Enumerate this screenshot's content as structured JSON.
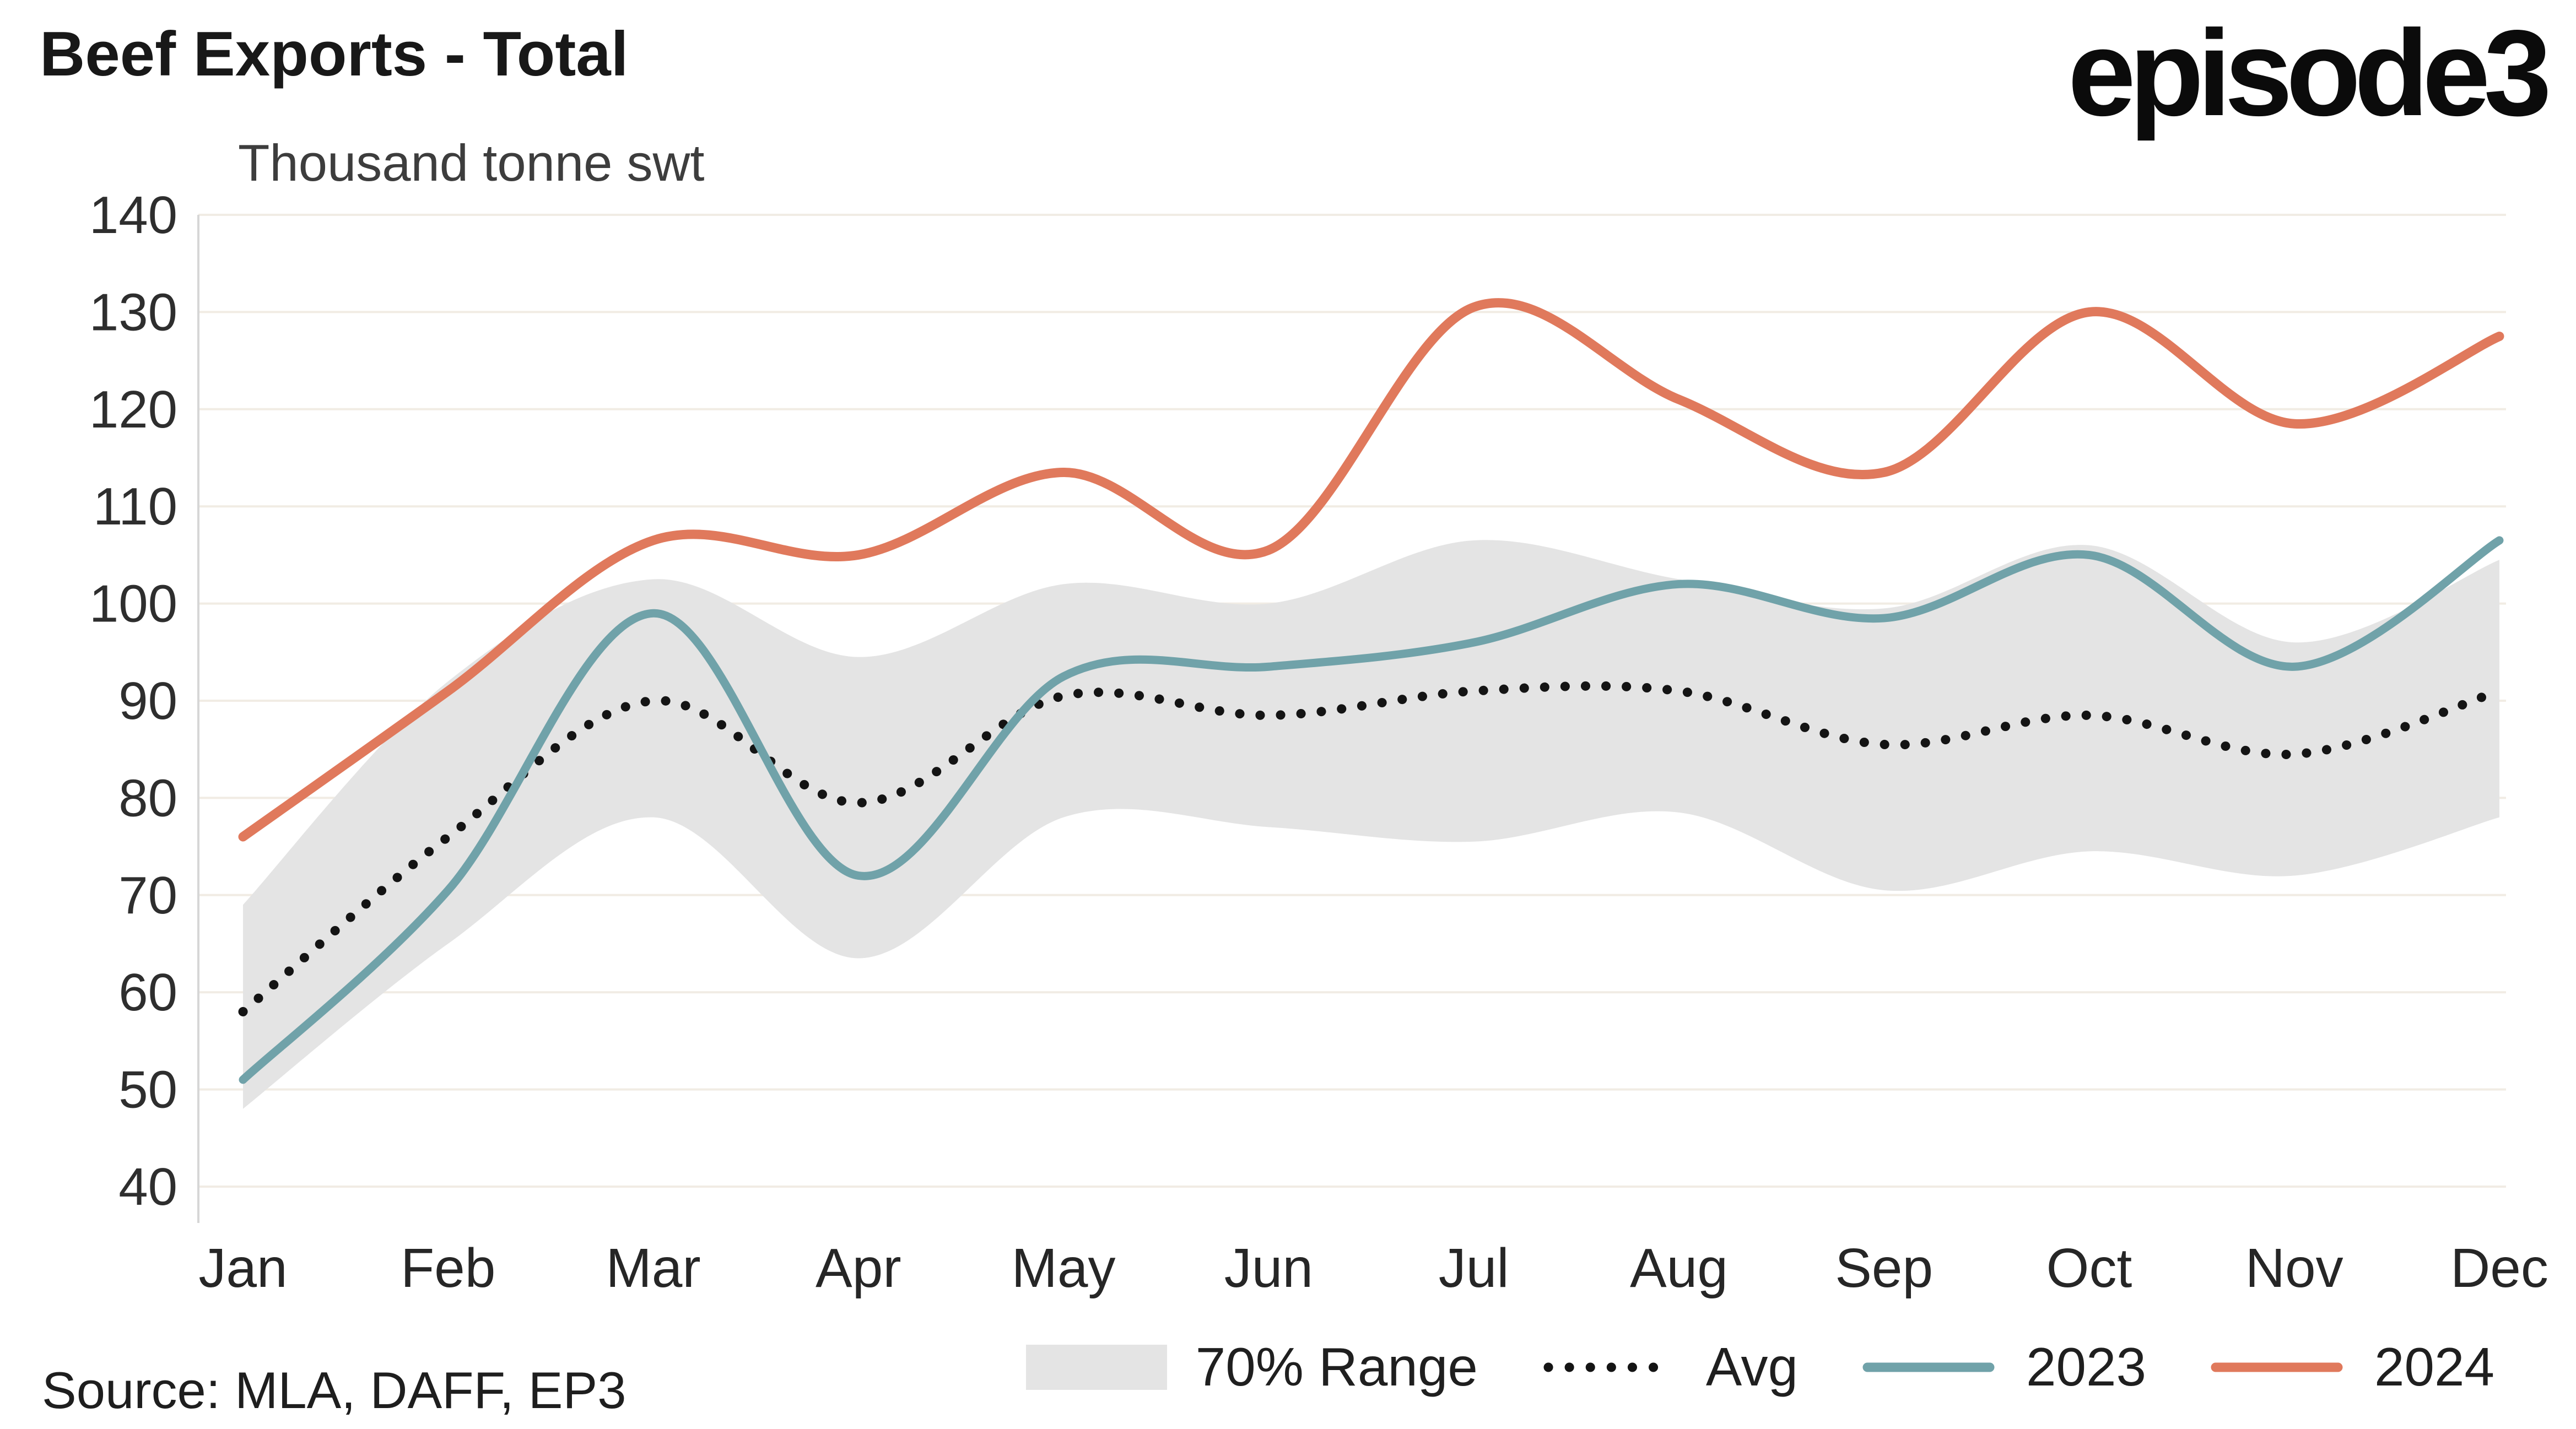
{
  "header": {
    "title": "Beef Exports - Total",
    "subtitle": "Thousand tonne swt",
    "logo_text": "episode3"
  },
  "footer": {
    "source": "Source: MLA, DAFF, EP3"
  },
  "legend": {
    "position": "bottom",
    "items": [
      {
        "label": "70% Range",
        "type": "band",
        "color": "#E4E4E4"
      },
      {
        "label": "Avg",
        "type": "dotted",
        "color": "#141414"
      },
      {
        "label": "2023",
        "type": "line",
        "color": "#70A2A9"
      },
      {
        "label": "2024",
        "type": "line",
        "color": "#E0795C"
      }
    ]
  },
  "chart_data": {
    "type": "line",
    "title": "Beef Exports - Total",
    "ylabel": "Thousand tonne swt",
    "categories": [
      "Jan",
      "Feb",
      "Mar",
      "Apr",
      "May",
      "Jun",
      "Jul",
      "Aug",
      "Sep",
      "Oct",
      "Nov",
      "Dec"
    ],
    "ylim": [
      40,
      140
    ],
    "yticks": [
      40,
      50,
      60,
      70,
      80,
      90,
      100,
      110,
      120,
      130,
      140
    ],
    "grid": "horizontal",
    "grid_color": "#F1ECE4",
    "axis_color": "#D6D6D6",
    "legend_position": "bottom",
    "band": {
      "name": "70% Range",
      "color": "#E4E4E4",
      "upper": [
        69,
        92,
        102.5,
        94.5,
        102,
        100,
        106.5,
        102.5,
        99.5,
        106,
        96,
        104.5
      ],
      "lower": [
        48,
        65,
        78,
        63.5,
        78,
        77,
        75.5,
        78.5,
        70.5,
        74.5,
        72,
        78
      ]
    },
    "series": [
      {
        "name": "Avg",
        "style": "dotted",
        "color": "#141414",
        "values": [
          58,
          76,
          90,
          79.5,
          90.5,
          88.5,
          91,
          91,
          85.5,
          88.5,
          84.5,
          91
        ]
      },
      {
        "name": "2023",
        "style": "solid",
        "color": "#70A2A9",
        "values": [
          51,
          70.5,
          99,
          72,
          92.5,
          93.5,
          96,
          102,
          98.5,
          105,
          93.5,
          106.5
        ]
      },
      {
        "name": "2024",
        "style": "solid",
        "color": "#E0795C",
        "values": [
          76,
          91,
          106.5,
          105,
          113.5,
          105.5,
          130.5,
          121,
          113.5,
          130,
          118.5,
          127.5
        ]
      }
    ]
  }
}
